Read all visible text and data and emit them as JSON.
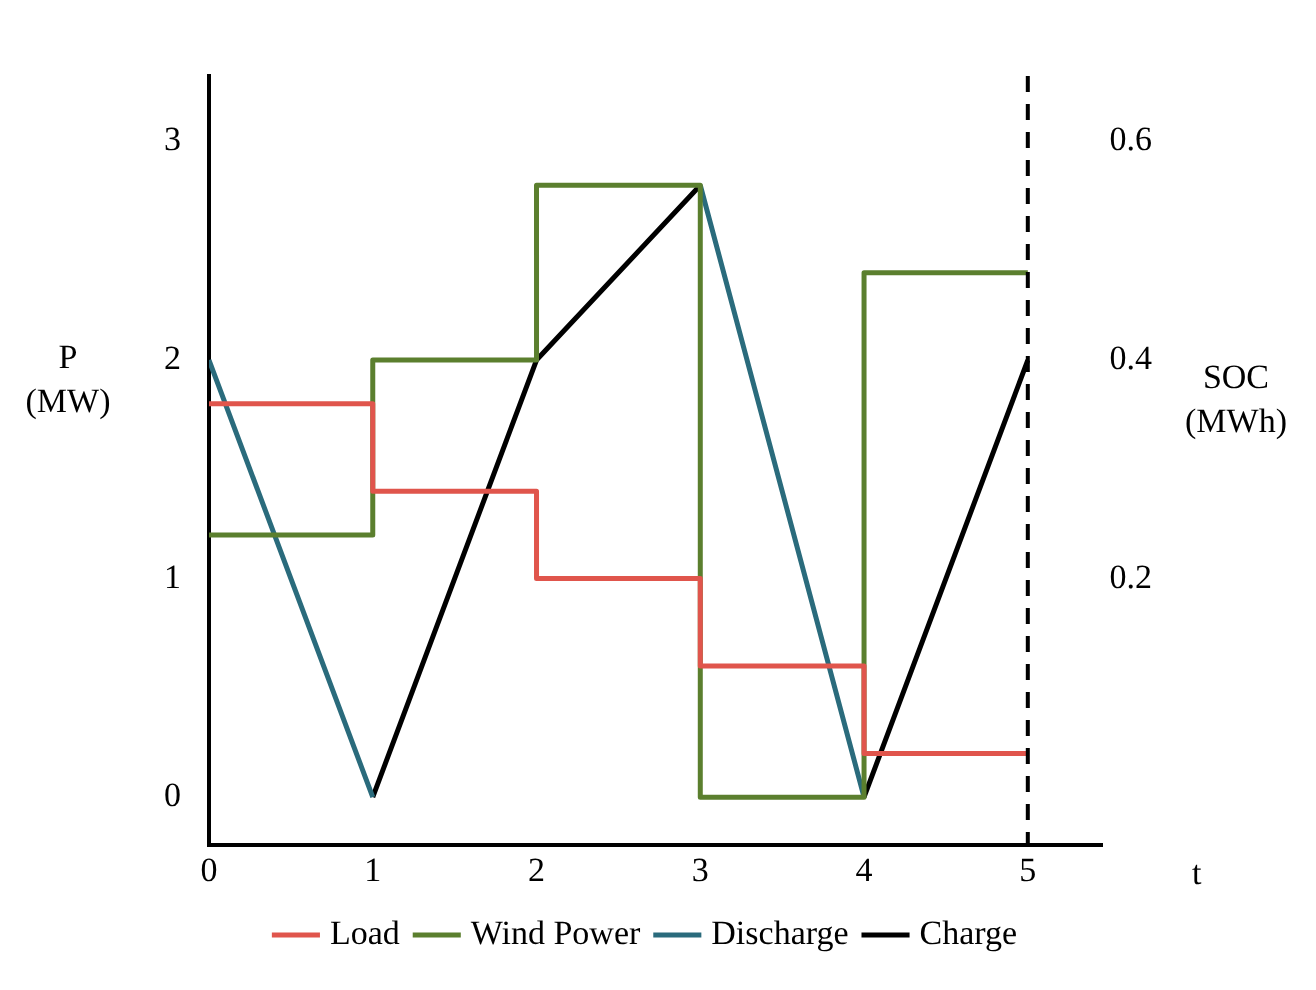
{
  "chart_data": {
    "type": "line",
    "xlabel": "t",
    "ylabel": "P (MW)",
    "y2label": "SOC (MWh)",
    "xlim": [
      0,
      5.45
    ],
    "xticks": [
      0,
      1,
      2,
      3,
      4,
      5
    ],
    "ylim": [
      -0.22,
      3.3
    ],
    "yticks": [
      0,
      1,
      2,
      3
    ],
    "y2lim": [
      -0.044,
      0.66
    ],
    "y2ticks": [
      0.2,
      0.4,
      0.6
    ],
    "series": [
      {
        "name": "Load",
        "type": "step",
        "color": "#e0554c",
        "x": [
          0,
          1,
          2,
          3,
          4,
          5
        ],
        "values": [
          1.8,
          1.4,
          1.0,
          0.6,
          0.2,
          0.2
        ]
      },
      {
        "name": "Wind Power",
        "type": "step",
        "color": "#5b7f2e",
        "x": [
          0,
          1,
          2,
          3,
          4,
          5
        ],
        "values": [
          1.2,
          2.0,
          2.8,
          0,
          2.4,
          2.4
        ]
      },
      {
        "name": "Discharge",
        "type": "line",
        "axis": "y2",
        "color": "#2a6b7c",
        "x": [
          0,
          1,
          2,
          3,
          4
        ],
        "values": [
          0.4,
          0,
          null,
          0.56,
          0
        ]
      },
      {
        "name": "Charge",
        "type": "line",
        "axis": "y2",
        "color": "#000000",
        "x": [
          1,
          2,
          3,
          3.5,
          4,
          5
        ],
        "values": [
          0,
          0.4,
          0.56,
          null,
          0,
          0.4
        ]
      }
    ],
    "ref_lines": [
      {
        "axis": "x",
        "value": 5,
        "color": "#000000",
        "line_style": "dashed"
      }
    ],
    "grid": false,
    "legend": "bottom",
    "marker": "none"
  }
}
